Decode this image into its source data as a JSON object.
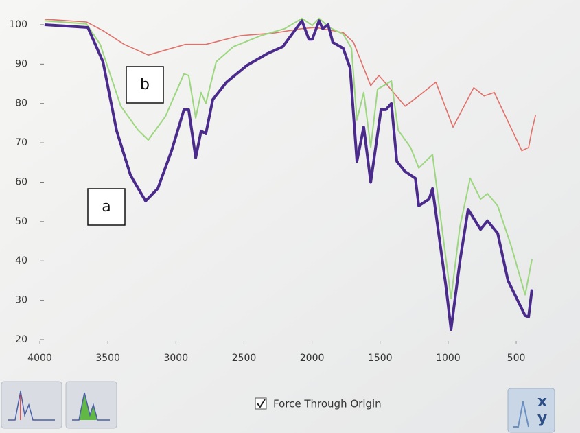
{
  "chart_data": {
    "type": "line",
    "xlim": [
      4000,
      300
    ],
    "ylim": [
      20,
      102
    ],
    "xticks": [
      4000,
      3500,
      3000,
      2500,
      2000,
      1500,
      1000,
      500
    ],
    "yticks": [
      20,
      30,
      40,
      50,
      60,
      70,
      80,
      90,
      100
    ],
    "annotations": [
      "a",
      "b"
    ],
    "series": [
      {
        "color": "#4a2b8c",
        "x": [
          3965,
          3647,
          3536,
          3435,
          3334,
          3223,
          3133,
          3032,
          2941,
          2906,
          2855,
          2815,
          2780,
          2729,
          2628,
          2477,
          2326,
          2215,
          2074,
          2023,
          1998,
          1948,
          1922,
          1882,
          1847,
          1771,
          1720,
          1670,
          1620,
          1569,
          1493,
          1458,
          1417,
          1377,
          1316,
          1241,
          1216,
          1140,
          1115,
          1014,
          979,
          913,
          853,
          762,
          711,
          636,
          560,
          484,
          434,
          409,
          384
        ],
        "values": [
          100,
          99.3,
          90.6,
          73,
          61.8,
          55.2,
          58.4,
          68,
          78.4,
          78.4,
          66.2,
          73,
          72.3,
          81,
          85.4,
          89.7,
          92.7,
          94.4,
          101,
          96.3,
          96.3,
          101,
          99,
          100,
          95.5,
          94,
          89,
          65.3,
          74,
          60,
          78.4,
          78.4,
          80,
          65.3,
          62.7,
          61,
          54,
          55.7,
          58.4,
          33,
          22.6,
          40,
          53.1,
          48,
          50.2,
          47,
          35,
          29.6,
          26.1,
          25.8,
          32.8
        ]
      },
      {
        "color": "#9cd67f",
        "x": [
          3965,
          3657,
          3556,
          3405,
          3278,
          3203,
          3077,
          2941,
          2906,
          2855,
          2815,
          2780,
          2704,
          2578,
          2376,
          2200,
          2074,
          1998,
          1948,
          1872,
          1771,
          1710,
          1670,
          1620,
          1569,
          1519,
          1417,
          1367,
          1276,
          1216,
          1115,
          1014,
          979,
          913,
          838,
          762,
          711,
          636,
          535,
          434,
          384
        ],
        "values": [
          101,
          100.2,
          95,
          79.3,
          73.2,
          70.7,
          76.7,
          87.5,
          87.1,
          76.3,
          82.8,
          80,
          90.6,
          94.4,
          97.2,
          99,
          101.6,
          99.8,
          101.6,
          99.3,
          97.6,
          94,
          75.8,
          82.8,
          68.8,
          83.6,
          85.7,
          73.2,
          68.8,
          63.6,
          67,
          40,
          30.5,
          48.8,
          61,
          55.7,
          57.1,
          54,
          43.6,
          31.4,
          40.4
        ]
      },
      {
        "color": "#e0706a",
        "x": [
          3965,
          3657,
          3531,
          3380,
          3203,
          2931,
          2780,
          2528,
          2275,
          2074,
          1973,
          1771,
          1695,
          1569,
          1509,
          1443,
          1316,
          1216,
          1090,
          964,
          812,
          736,
          661,
          459,
          409,
          384,
          358
        ],
        "values": [
          101.4,
          100.7,
          98.4,
          95,
          92.3,
          95,
          95,
          97.2,
          97.9,
          99,
          99.3,
          98,
          95.5,
          84.5,
          87.1,
          84.5,
          79.3,
          81.9,
          85.4,
          74,
          84,
          81.9,
          82.8,
          68,
          68.8,
          73.2,
          77
        ]
      }
    ]
  },
  "controls": {
    "checkbox_label": "Force Through Origin",
    "xy_button": [
      "x",
      "y"
    ]
  }
}
